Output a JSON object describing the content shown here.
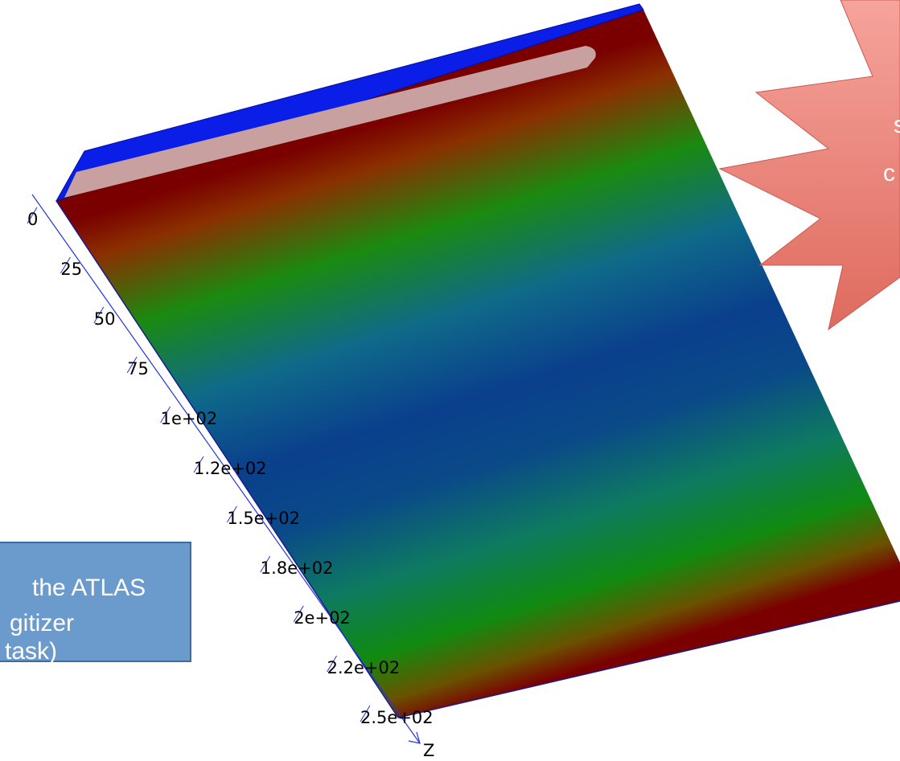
{
  "axis": {
    "label": "Z",
    "ticks": [
      "0",
      "25",
      "50",
      "75",
      "1e+02",
      "1.2e+02",
      "1.5e+02",
      "1.8e+02",
      "2e+02",
      "2.2e+02",
      "2.5e+02"
    ]
  },
  "callout": {
    "lines": [
      "the ATLAS",
      "gitizer",
      "task)"
    ]
  },
  "star": {
    "lines": [
      "s",
      "c"
    ]
  }
}
